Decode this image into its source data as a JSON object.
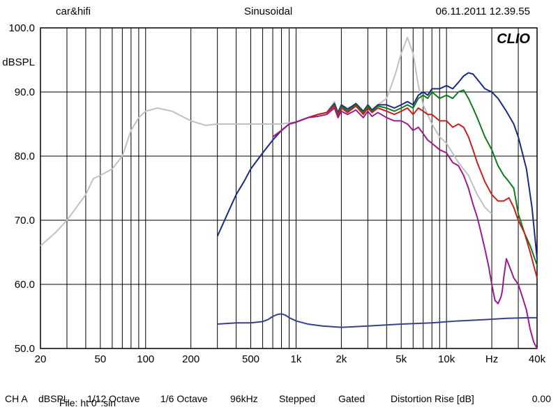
{
  "header": {
    "left": "car&hifi",
    "center": "Sinusoidal",
    "right": "06.11.2011 12.39.55"
  },
  "chart": {
    "type": "line",
    "brand": "CLIO",
    "x_scale": "log",
    "xlim": [
      20,
      40000
    ],
    "ylim": [
      50,
      100
    ],
    "ytick_step": 10,
    "ylabel": "dBSPL",
    "xlabel_suffix": "Hz",
    "x_ticks": [
      20,
      50,
      100,
      200,
      500,
      1000,
      2000,
      5000,
      10000,
      40000
    ],
    "x_tick_labels": [
      "20",
      "50",
      "100",
      "200",
      "500",
      "1k",
      "2k",
      "5k",
      "10k",
      "40k"
    ],
    "x_gridlines": [
      20,
      30,
      40,
      50,
      60,
      70,
      80,
      90,
      100,
      200,
      300,
      400,
      500,
      600,
      700,
      800,
      900,
      1000,
      2000,
      3000,
      4000,
      5000,
      6000,
      7000,
      8000,
      9000,
      10000,
      20000,
      30000,
      40000
    ],
    "background_color": "#ffffff",
    "grid_color": "#000000",
    "axis_color": "#000000",
    "line_width": 2,
    "series": [
      {
        "color": "#c0c0c0",
        "data": [
          [
            20,
            66
          ],
          [
            25,
            68
          ],
          [
            30,
            70
          ],
          [
            40,
            74
          ],
          [
            45,
            76.5
          ],
          [
            50,
            77
          ],
          [
            60,
            78
          ],
          [
            70,
            80
          ],
          [
            80,
            84
          ],
          [
            90,
            86
          ],
          [
            100,
            87
          ],
          [
            120,
            87.5
          ],
          [
            150,
            87
          ],
          [
            200,
            85.5
          ],
          [
            250,
            84.8
          ],
          [
            300,
            85
          ],
          [
            400,
            85
          ],
          [
            500,
            85
          ],
          [
            600,
            85
          ],
          [
            700,
            85
          ],
          [
            800,
            85
          ],
          [
            900,
            85.2
          ],
          [
            1000,
            85.3
          ],
          [
            1200,
            86
          ],
          [
            1400,
            86.5
          ],
          [
            1600,
            86.8
          ],
          [
            1800,
            88.5
          ],
          [
            1900,
            86.5
          ],
          [
            2000,
            88
          ],
          [
            2200,
            87.5
          ],
          [
            2500,
            88
          ],
          [
            2800,
            86.5
          ],
          [
            3000,
            88
          ],
          [
            3200,
            87
          ],
          [
            3500,
            88
          ],
          [
            4000,
            89
          ],
          [
            4300,
            91
          ],
          [
            4600,
            93
          ],
          [
            5000,
            96
          ],
          [
            5500,
            98.5
          ],
          [
            6000,
            96
          ],
          [
            6500,
            91
          ],
          [
            7000,
            88
          ],
          [
            8000,
            85
          ],
          [
            9000,
            83
          ],
          [
            10000,
            82
          ],
          [
            12000,
            79
          ],
          [
            14000,
            77
          ],
          [
            16000,
            74
          ],
          [
            18000,
            72
          ],
          [
            20000,
            71
          ]
        ]
      },
      {
        "color": "#192a85",
        "data": [
          [
            300,
            67.5
          ],
          [
            350,
            71
          ],
          [
            400,
            74
          ],
          [
            450,
            76
          ],
          [
            500,
            78
          ],
          [
            600,
            80.5
          ],
          [
            700,
            82.5
          ],
          [
            800,
            84
          ],
          [
            900,
            85
          ],
          [
            1000,
            85.3
          ],
          [
            1200,
            86
          ],
          [
            1400,
            86.5
          ],
          [
            1600,
            86.8
          ],
          [
            1800,
            88.2
          ],
          [
            1900,
            86.8
          ],
          [
            2000,
            88
          ],
          [
            2200,
            87.3
          ],
          [
            2500,
            88.2
          ],
          [
            2800,
            87
          ],
          [
            3000,
            88
          ],
          [
            3200,
            87.2
          ],
          [
            3500,
            88
          ],
          [
            4000,
            88
          ],
          [
            4500,
            87.5
          ],
          [
            5000,
            88
          ],
          [
            5500,
            88.5
          ],
          [
            6000,
            88
          ],
          [
            6500,
            89.5
          ],
          [
            7000,
            90
          ],
          [
            7500,
            89.5
          ],
          [
            8000,
            90.5
          ],
          [
            9000,
            90.5
          ],
          [
            10000,
            91
          ],
          [
            11000,
            90.5
          ],
          [
            12000,
            91.5
          ],
          [
            13000,
            92.5
          ],
          [
            14000,
            93
          ],
          [
            15000,
            92.8
          ],
          [
            16000,
            92
          ],
          [
            18000,
            90.5
          ],
          [
            20000,
            90
          ],
          [
            22000,
            89
          ],
          [
            25000,
            87
          ],
          [
            28000,
            85
          ],
          [
            30000,
            83
          ],
          [
            34000,
            78
          ],
          [
            37000,
            72
          ],
          [
            40000,
            64
          ]
        ]
      },
      {
        "color": "#0f7a1a",
        "data": [
          [
            700,
            83
          ],
          [
            800,
            84
          ],
          [
            900,
            85
          ],
          [
            1000,
            85.3
          ],
          [
            1200,
            86
          ],
          [
            1400,
            86.5
          ],
          [
            1600,
            86.8
          ],
          [
            1800,
            88
          ],
          [
            1900,
            86.5
          ],
          [
            2000,
            87.8
          ],
          [
            2200,
            87
          ],
          [
            2500,
            88
          ],
          [
            2800,
            86.8
          ],
          [
            3000,
            87.8
          ],
          [
            3200,
            87
          ],
          [
            3500,
            87.8
          ],
          [
            4000,
            87.5
          ],
          [
            4500,
            87
          ],
          [
            5000,
            87.5
          ],
          [
            5500,
            88
          ],
          [
            6000,
            87.5
          ],
          [
            6500,
            89
          ],
          [
            7000,
            89.5
          ],
          [
            7500,
            89
          ],
          [
            8000,
            90
          ],
          [
            9000,
            89
          ],
          [
            10000,
            89.5
          ],
          [
            11000,
            89
          ],
          [
            12000,
            90
          ],
          [
            13000,
            90.3
          ],
          [
            14000,
            89
          ],
          [
            15000,
            87.5
          ],
          [
            16000,
            86
          ],
          [
            18000,
            83
          ],
          [
            20000,
            81
          ],
          [
            22000,
            78.5
          ],
          [
            24000,
            77
          ],
          [
            25000,
            76.5
          ],
          [
            26000,
            76
          ],
          [
            28000,
            75
          ],
          [
            30000,
            71
          ],
          [
            33000,
            68
          ],
          [
            36000,
            66
          ],
          [
            40000,
            63
          ]
        ]
      },
      {
        "color": "#c91e1e",
        "data": [
          [
            700,
            83
          ],
          [
            800,
            84
          ],
          [
            900,
            85
          ],
          [
            1000,
            85.3
          ],
          [
            1200,
            86
          ],
          [
            1400,
            86.5
          ],
          [
            1600,
            86.8
          ],
          [
            1800,
            87.8
          ],
          [
            1900,
            86.3
          ],
          [
            2000,
            87.5
          ],
          [
            2200,
            86.8
          ],
          [
            2500,
            87.8
          ],
          [
            2800,
            86.5
          ],
          [
            3000,
            87.5
          ],
          [
            3200,
            86.8
          ],
          [
            3500,
            87.5
          ],
          [
            4000,
            87
          ],
          [
            4500,
            86.5
          ],
          [
            5000,
            87
          ],
          [
            5500,
            87.5
          ],
          [
            6000,
            86.5
          ],
          [
            6500,
            87.5
          ],
          [
            7000,
            87
          ],
          [
            7500,
            86.5
          ],
          [
            8000,
            86.5
          ],
          [
            9000,
            85.5
          ],
          [
            10000,
            85.5
          ],
          [
            11000,
            84.5
          ],
          [
            12000,
            85
          ],
          [
            13000,
            84.5
          ],
          [
            14000,
            83
          ],
          [
            15000,
            81
          ],
          [
            16000,
            79
          ],
          [
            18000,
            76
          ],
          [
            20000,
            74
          ],
          [
            22000,
            73
          ],
          [
            24000,
            73
          ],
          [
            26000,
            73.5
          ],
          [
            28000,
            72
          ],
          [
            30000,
            70
          ],
          [
            33000,
            68
          ],
          [
            36000,
            65
          ],
          [
            40000,
            61
          ]
        ]
      },
      {
        "color": "#9a1b8f",
        "data": [
          [
            700,
            83
          ],
          [
            800,
            84
          ],
          [
            900,
            85
          ],
          [
            1000,
            85.3
          ],
          [
            1200,
            86
          ],
          [
            1400,
            86.2
          ],
          [
            1600,
            86.5
          ],
          [
            1800,
            87.5
          ],
          [
            1900,
            86
          ],
          [
            2000,
            87
          ],
          [
            2200,
            86.5
          ],
          [
            2500,
            87.2
          ],
          [
            2800,
            86
          ],
          [
            3000,
            87
          ],
          [
            3200,
            86.2
          ],
          [
            3500,
            86.8
          ],
          [
            4000,
            86
          ],
          [
            4500,
            85.5
          ],
          [
            5000,
            85.5
          ],
          [
            5500,
            85
          ],
          [
            6000,
            84
          ],
          [
            6500,
            84.5
          ],
          [
            7000,
            83.5
          ],
          [
            7500,
            82.5
          ],
          [
            8000,
            82
          ],
          [
            9000,
            81
          ],
          [
            10000,
            80.5
          ],
          [
            11000,
            79
          ],
          [
            12000,
            78.5
          ],
          [
            13000,
            77
          ],
          [
            14000,
            75
          ],
          [
            15000,
            72.5
          ],
          [
            16000,
            70.5
          ],
          [
            17000,
            68
          ],
          [
            18000,
            65.5
          ],
          [
            19000,
            63
          ],
          [
            20000,
            60
          ],
          [
            21000,
            57.5
          ],
          [
            22000,
            57
          ],
          [
            23000,
            58
          ],
          [
            23500,
            59
          ],
          [
            24000,
            61
          ],
          [
            25000,
            64
          ],
          [
            26000,
            63
          ],
          [
            27000,
            62
          ],
          [
            28000,
            61
          ],
          [
            29000,
            60.5
          ],
          [
            30000,
            60
          ],
          [
            32000,
            58
          ],
          [
            34000,
            56
          ],
          [
            36000,
            53
          ],
          [
            38000,
            51
          ],
          [
            40000,
            50
          ]
        ]
      },
      {
        "color": "#38408a",
        "data": [
          [
            300,
            53.8
          ],
          [
            400,
            54
          ],
          [
            500,
            54
          ],
          [
            600,
            54.2
          ],
          [
            650,
            54.5
          ],
          [
            700,
            55
          ],
          [
            750,
            55.3
          ],
          [
            800,
            55.4
          ],
          [
            850,
            55.2
          ],
          [
            900,
            54.8
          ],
          [
            1000,
            54.3
          ],
          [
            1200,
            53.8
          ],
          [
            1500,
            53.5
          ],
          [
            2000,
            53.3
          ],
          [
            3000,
            53.5
          ],
          [
            5000,
            53.8
          ],
          [
            8000,
            54
          ],
          [
            12000,
            54.3
          ],
          [
            18000,
            54.5
          ],
          [
            25000,
            54.7
          ],
          [
            35000,
            54.8
          ],
          [
            40000,
            54.8
          ]
        ]
      }
    ]
  },
  "footer": {
    "items": [
      "CH A",
      "dBSPL",
      "1/12 Octave",
      "1/6 Octave",
      "96kHz",
      "Stepped",
      "Gated",
      "Distortion Rise [dB]",
      "0.00"
    ],
    "file_label": "File: ht 0°.sin"
  }
}
